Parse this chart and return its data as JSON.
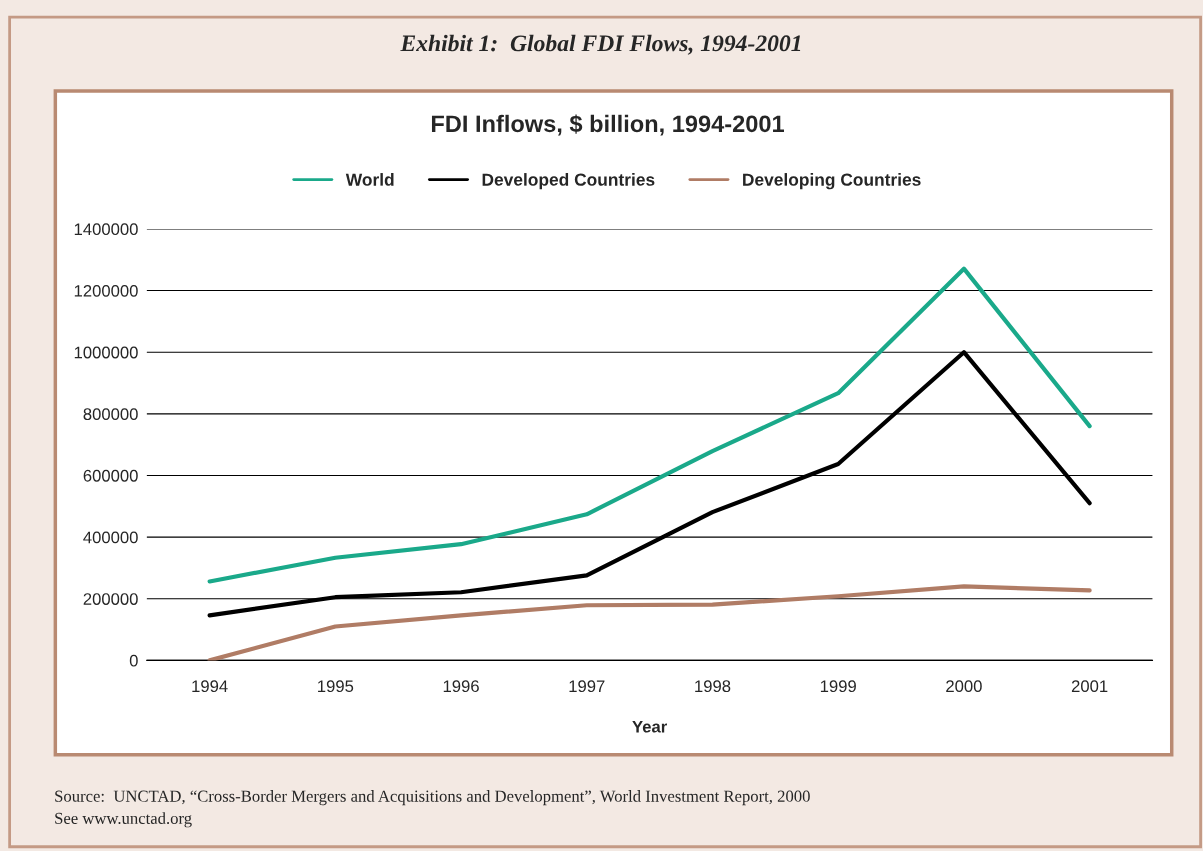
{
  "chart_data": {
    "type": "line",
    "title": "Exhibit 1:  Global FDI Flows, 1994-2001",
    "subtitle": "FDI Inflows, $ billion, 1994-2001",
    "xlabel": "Year",
    "categories": [
      "1994",
      "1995",
      "1996",
      "1997",
      "1998",
      "1999",
      "2000",
      "2001"
    ],
    "series": [
      {
        "name": "World",
        "color": "#1aa98a",
        "values": [
          256000,
          333000,
          377000,
          474000,
          679000,
          867000,
          1271000,
          760000
        ]
      },
      {
        "name": "Developed Countries",
        "color": "#000000",
        "values": [
          146000,
          205000,
          221000,
          276000,
          481000,
          637000,
          1000000,
          510000
        ]
      },
      {
        "name": "Developing Countries",
        "color": "#b07c65",
        "values": [
          0,
          110000,
          146000,
          179000,
          181000,
          208000,
          240000,
          227000
        ]
      }
    ],
    "ylim": [
      0,
      1400000
    ],
    "yticks": [
      0,
      200000,
      400000,
      600000,
      800000,
      1000000,
      1200000,
      1400000
    ],
    "grid": "y",
    "legend": "top",
    "marker": "none",
    "line_style": "solid",
    "annotations": [
      "Source:  UNCTAD, “Cross-Border Mergers and Acquisitions and Development”, World Investment Report, 2000",
      "See www.unctad.org"
    ]
  }
}
